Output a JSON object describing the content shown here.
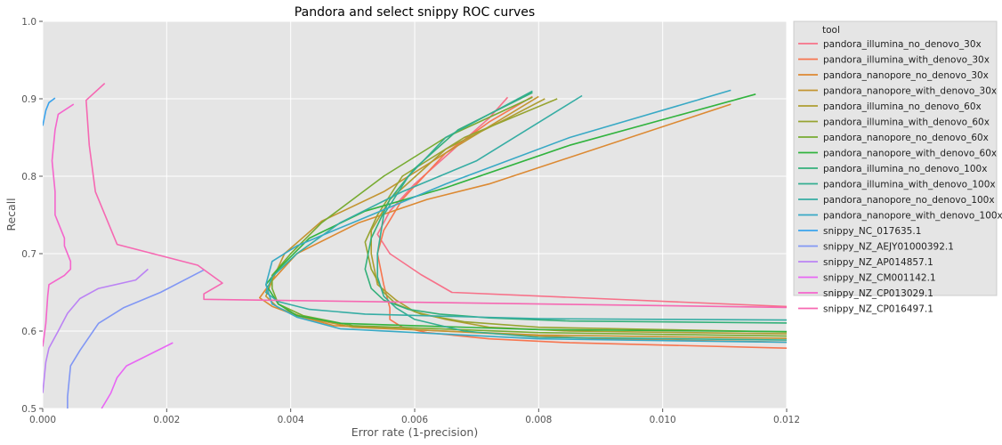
{
  "chart_data": {
    "type": "line",
    "title": "Pandora and select snippy ROC curves",
    "xlabel": "Error rate (1-precision)",
    "ylabel": "Recall",
    "xlim": [
      0,
      0.012
    ],
    "ylim": [
      0.5,
      1.0
    ],
    "xticks": [
      0.0,
      0.002,
      0.004,
      0.006,
      0.008,
      0.01,
      0.012
    ],
    "xtick_labels": [
      "0.000",
      "0.002",
      "0.004",
      "0.006",
      "0.008",
      "0.010",
      "0.012"
    ],
    "yticks": [
      0.5,
      0.6,
      0.7,
      0.8,
      0.9,
      1.0
    ],
    "ytick_labels": [
      "0.5",
      "0.6",
      "0.7",
      "0.8",
      "0.9",
      "1.0"
    ],
    "grid": true,
    "legend_title": "tool",
    "legend_position": "outside-right",
    "series": [
      {
        "name": "pandora_illumina_no_denovo_30x",
        "color": "#f77189",
        "points": [
          [
            0.0125,
            0.63
          ],
          [
            0.0066,
            0.65
          ],
          [
            0.0061,
            0.673
          ],
          [
            0.0056,
            0.7
          ],
          [
            0.0054,
            0.725
          ],
          [
            0.0056,
            0.755
          ],
          [
            0.006,
            0.79
          ],
          [
            0.0067,
            0.84
          ],
          [
            0.0072,
            0.875
          ],
          [
            0.0075,
            0.902
          ]
        ]
      },
      {
        "name": "pandora_illumina_with_denovo_30x",
        "color": "#f7754f",
        "points": [
          [
            0.0125,
            0.577
          ],
          [
            0.0085,
            0.585
          ],
          [
            0.0072,
            0.59
          ],
          [
            0.0062,
            0.598
          ],
          [
            0.0058,
            0.605
          ],
          [
            0.0056,
            0.615
          ],
          [
            0.0056,
            0.63
          ],
          [
            0.0055,
            0.66
          ],
          [
            0.0054,
            0.7
          ],
          [
            0.0055,
            0.73
          ],
          [
            0.0058,
            0.77
          ],
          [
            0.0065,
            0.83
          ],
          [
            0.0072,
            0.87
          ],
          [
            0.0079,
            0.903
          ]
        ]
      },
      {
        "name": "pandora_nanopore_no_denovo_30x",
        "color": "#dc8932",
        "points": [
          [
            0.0125,
            0.585
          ],
          [
            0.009,
            0.59
          ],
          [
            0.0047,
            0.607
          ],
          [
            0.0041,
            0.62
          ],
          [
            0.0037,
            0.632
          ],
          [
            0.0035,
            0.643
          ],
          [
            0.0037,
            0.665
          ],
          [
            0.0041,
            0.7
          ],
          [
            0.0051,
            0.74
          ],
          [
            0.0062,
            0.77
          ],
          [
            0.0072,
            0.79
          ],
          [
            0.0111,
            0.893
          ]
        ]
      },
      {
        "name": "pandora_nanopore_with_denovo_30x",
        "color": "#c39532",
        "points": [
          [
            0.0125,
            0.59
          ],
          [
            0.008,
            0.595
          ],
          [
            0.005,
            0.605
          ],
          [
            0.0042,
            0.618
          ],
          [
            0.0038,
            0.63
          ],
          [
            0.0036,
            0.645
          ],
          [
            0.0037,
            0.665
          ],
          [
            0.0039,
            0.7
          ],
          [
            0.0045,
            0.742
          ],
          [
            0.0055,
            0.78
          ],
          [
            0.0065,
            0.83
          ],
          [
            0.008,
            0.903
          ]
        ]
      },
      {
        "name": "pandora_illumina_no_denovo_60x",
        "color": "#ae9d31",
        "points": [
          [
            0.0125,
            0.596
          ],
          [
            0.0085,
            0.6
          ],
          [
            0.0072,
            0.605
          ],
          [
            0.0065,
            0.615
          ],
          [
            0.006,
            0.625
          ],
          [
            0.0057,
            0.64
          ],
          [
            0.0054,
            0.66
          ],
          [
            0.0053,
            0.7
          ],
          [
            0.0053,
            0.73
          ],
          [
            0.0056,
            0.77
          ],
          [
            0.0065,
            0.835
          ],
          [
            0.0075,
            0.875
          ],
          [
            0.0081,
            0.9
          ]
        ]
      },
      {
        "name": "pandora_illumina_with_denovo_60x",
        "color": "#97a431",
        "points": [
          [
            0.0125,
            0.598
          ],
          [
            0.008,
            0.605
          ],
          [
            0.0068,
            0.612
          ],
          [
            0.0061,
            0.622
          ],
          [
            0.0057,
            0.635
          ],
          [
            0.0055,
            0.65
          ],
          [
            0.0053,
            0.68
          ],
          [
            0.0052,
            0.715
          ],
          [
            0.0054,
            0.75
          ],
          [
            0.0058,
            0.8
          ],
          [
            0.0068,
            0.85
          ],
          [
            0.0083,
            0.9
          ]
        ]
      },
      {
        "name": "pandora_nanopore_no_denovo_60x",
        "color": "#77ab31",
        "points": [
          [
            0.0125,
            0.593
          ],
          [
            0.008,
            0.598
          ],
          [
            0.005,
            0.607
          ],
          [
            0.0042,
            0.62
          ],
          [
            0.0038,
            0.635
          ],
          [
            0.0037,
            0.655
          ],
          [
            0.0037,
            0.672
          ],
          [
            0.004,
            0.7
          ],
          [
            0.0045,
            0.74
          ],
          [
            0.0055,
            0.8
          ],
          [
            0.0065,
            0.85
          ],
          [
            0.0079,
            0.902
          ]
        ]
      },
      {
        "name": "pandora_nanopore_with_denovo_60x",
        "color": "#31b33e",
        "points": [
          [
            0.0125,
            0.599
          ],
          [
            0.008,
            0.602
          ],
          [
            0.0048,
            0.61
          ],
          [
            0.0041,
            0.62
          ],
          [
            0.0038,
            0.635
          ],
          [
            0.0036,
            0.66
          ],
          [
            0.0038,
            0.68
          ],
          [
            0.0043,
            0.72
          ],
          [
            0.0052,
            0.755
          ],
          [
            0.0065,
            0.785
          ],
          [
            0.0085,
            0.84
          ],
          [
            0.0115,
            0.906
          ]
        ]
      },
      {
        "name": "pandora_illumina_no_denovo_100x",
        "color": "#33b07a",
        "points": [
          [
            0.0125,
            0.61
          ],
          [
            0.0085,
            0.613
          ],
          [
            0.0072,
            0.617
          ],
          [
            0.0064,
            0.622
          ],
          [
            0.0059,
            0.628
          ],
          [
            0.0055,
            0.64
          ],
          [
            0.0053,
            0.655
          ],
          [
            0.0052,
            0.68
          ],
          [
            0.0053,
            0.72
          ],
          [
            0.0056,
            0.77
          ],
          [
            0.006,
            0.81
          ],
          [
            0.0067,
            0.86
          ],
          [
            0.0079,
            0.908
          ]
        ]
      },
      {
        "name": "pandora_illumina_with_denovo_100x",
        "color": "#34ae91",
        "points": [
          [
            0.0125,
            0.588
          ],
          [
            0.008,
            0.592
          ],
          [
            0.0068,
            0.6
          ],
          [
            0.006,
            0.615
          ],
          [
            0.0057,
            0.63
          ],
          [
            0.0055,
            0.645
          ],
          [
            0.0054,
            0.67
          ],
          [
            0.0054,
            0.7
          ],
          [
            0.0055,
            0.75
          ],
          [
            0.0059,
            0.8
          ],
          [
            0.0065,
            0.85
          ],
          [
            0.0079,
            0.91
          ]
        ]
      },
      {
        "name": "pandora_nanopore_no_denovo_100x",
        "color": "#36ada4",
        "points": [
          [
            0.0125,
            0.614
          ],
          [
            0.008,
            0.616
          ],
          [
            0.0052,
            0.622
          ],
          [
            0.0043,
            0.628
          ],
          [
            0.0038,
            0.638
          ],
          [
            0.0036,
            0.65
          ],
          [
            0.0037,
            0.67
          ],
          [
            0.0041,
            0.7
          ],
          [
            0.0048,
            0.74
          ],
          [
            0.0058,
            0.78
          ],
          [
            0.007,
            0.82
          ],
          [
            0.0087,
            0.904
          ]
        ]
      },
      {
        "name": "pandora_nanopore_with_denovo_100x",
        "color": "#38a9c5",
        "points": [
          [
            0.0125,
            0.585
          ],
          [
            0.008,
            0.59
          ],
          [
            0.0048,
            0.603
          ],
          [
            0.0041,
            0.618
          ],
          [
            0.0037,
            0.635
          ],
          [
            0.0036,
            0.66
          ],
          [
            0.0037,
            0.69
          ],
          [
            0.0041,
            0.71
          ],
          [
            0.005,
            0.74
          ],
          [
            0.0065,
            0.79
          ],
          [
            0.0085,
            0.85
          ],
          [
            0.0111,
            0.911
          ]
        ]
      },
      {
        "name": "snippy_NC_017635.1",
        "color": "#3ba3ec",
        "points": [
          [
            0.0,
            0.865
          ],
          [
            5e-05,
            0.885
          ],
          [
            0.0001,
            0.895
          ],
          [
            0.0002,
            0.901
          ]
        ]
      },
      {
        "name": "snippy_NZ_AEJY01000392.1",
        "color": "#8197f4",
        "points": [
          [
            0.0004,
            0.5
          ],
          [
            0.0004,
            0.515
          ],
          [
            0.00045,
            0.555
          ],
          [
            0.0006,
            0.575
          ],
          [
            0.0009,
            0.61
          ],
          [
            0.0013,
            0.63
          ],
          [
            0.0019,
            0.65
          ],
          [
            0.0026,
            0.679
          ]
        ]
      },
      {
        "name": "snippy_NZ_AP014857.1",
        "color": "#bb83f4",
        "points": [
          [
            0.0,
            0.52
          ],
          [
            5e-05,
            0.56
          ],
          [
            0.0001,
            0.578
          ],
          [
            0.00025,
            0.6
          ],
          [
            0.0004,
            0.623
          ],
          [
            0.0006,
            0.642
          ],
          [
            0.0009,
            0.655
          ],
          [
            0.0015,
            0.666
          ],
          [
            0.0017,
            0.68
          ]
        ]
      },
      {
        "name": "snippy_NZ_CM001142.1",
        "color": "#e866f4",
        "points": [
          [
            0.00095,
            0.5
          ],
          [
            0.0011,
            0.52
          ],
          [
            0.0012,
            0.54
          ],
          [
            0.00135,
            0.555
          ],
          [
            0.0016,
            0.565
          ],
          [
            0.0021,
            0.585
          ]
        ]
      },
      {
        "name": "snippy_NZ_CP013029.1",
        "color": "#f565cc",
        "points": [
          [
            0.0,
            0.58
          ],
          [
            5e-05,
            0.61
          ],
          [
            8e-05,
            0.645
          ],
          [
            0.0001,
            0.66
          ],
          [
            0.00035,
            0.672
          ],
          [
            0.00045,
            0.68
          ],
          [
            0.00045,
            0.69
          ],
          [
            0.00035,
            0.71
          ],
          [
            0.00035,
            0.72
          ],
          [
            0.00025,
            0.74
          ],
          [
            0.0002,
            0.75
          ],
          [
            0.0002,
            0.78
          ],
          [
            0.00015,
            0.82
          ],
          [
            0.0002,
            0.86
          ],
          [
            0.00025,
            0.88
          ],
          [
            0.0005,
            0.893
          ]
        ]
      },
      {
        "name": "snippy_NZ_CP016497.1",
        "color": "#f668b2",
        "points": [
          [
            0.0125,
            0.63
          ],
          [
            0.0026,
            0.641
          ],
          [
            0.0026,
            0.648
          ],
          [
            0.0029,
            0.662
          ],
          [
            0.0025,
            0.685
          ],
          [
            0.0012,
            0.712
          ],
          [
            0.00085,
            0.78
          ],
          [
            0.00075,
            0.84
          ],
          [
            0.0007,
            0.898
          ],
          [
            0.001,
            0.92
          ]
        ]
      }
    ]
  }
}
